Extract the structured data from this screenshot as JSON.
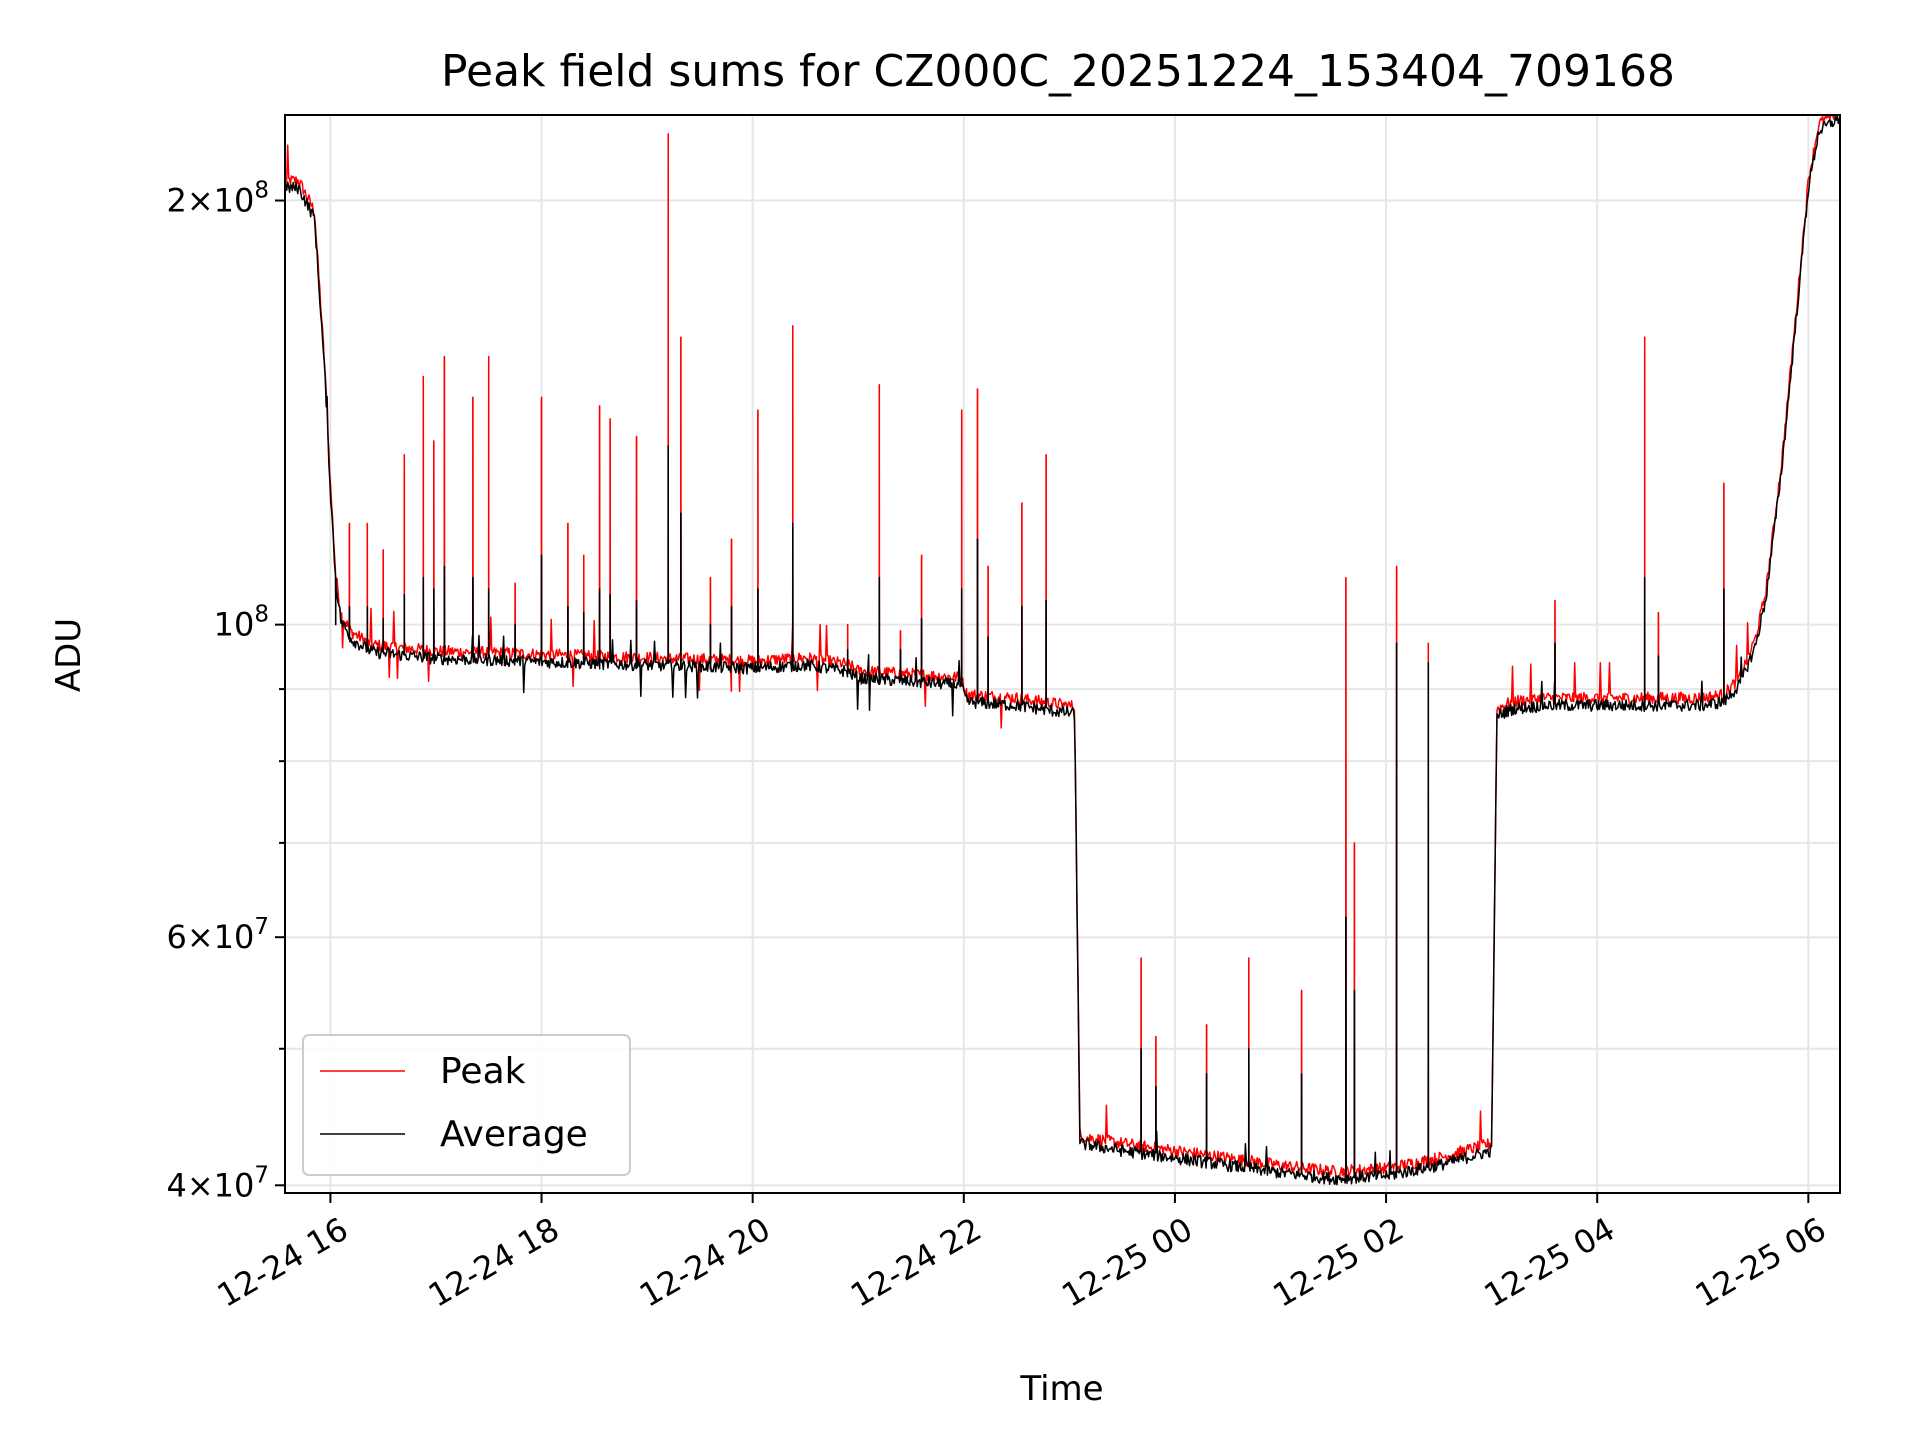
{
  "chart_data": {
    "type": "line",
    "title": "Peak field sums for CZ000C_20251224_153404_709168",
    "xlabel": "Time",
    "ylabel": "ADU",
    "yscale": "log",
    "ylim": [
      39500000,
      230000000
    ],
    "xlim": [
      15.57,
      30.3
    ],
    "grid": true,
    "legend_location": "lower-left",
    "x_units": "hours since 2025-12-24 00:00",
    "x_ticks": [
      {
        "value": 16,
        "label": "12-24 16"
      },
      {
        "value": 18,
        "label": "12-24 18"
      },
      {
        "value": 20,
        "label": "12-24 20"
      },
      {
        "value": 22,
        "label": "12-24 22"
      },
      {
        "value": 24,
        "label": "12-25 00"
      },
      {
        "value": 26,
        "label": "12-25 02"
      },
      {
        "value": 28,
        "label": "12-25 04"
      },
      {
        "value": 30,
        "label": "12-25 06"
      }
    ],
    "y_major_ticks": [
      {
        "value": 40000000,
        "mantissa": "4",
        "exp": "7"
      },
      {
        "value": 60000000,
        "mantissa": "6",
        "exp": "7"
      },
      {
        "value": 100000000,
        "mantissa": "",
        "exp": "8"
      },
      {
        "value": 200000000,
        "mantissa": "2",
        "exp": "8"
      }
    ],
    "y_minor_ticks": [
      50000000,
      70000000,
      80000000,
      90000000
    ],
    "baseline": [
      [
        15.57,
        205000000
      ],
      [
        15.7,
        205000000
      ],
      [
        15.85,
        195000000
      ],
      [
        15.95,
        150000000
      ],
      [
        16.0,
        125000000
      ],
      [
        16.05,
        108000000
      ],
      [
        16.1,
        101000000
      ],
      [
        16.2,
        98000000
      ],
      [
        16.4,
        96000000
      ],
      [
        17.0,
        95000000
      ],
      [
        17.5,
        94800000
      ],
      [
        18.0,
        94500000
      ],
      [
        19.0,
        94000000
      ],
      [
        20.0,
        93500000
      ],
      [
        20.5,
        94000000
      ],
      [
        20.9,
        93000000
      ],
      [
        21.0,
        92000000
      ],
      [
        21.5,
        91500000
      ],
      [
        21.97,
        91000000
      ],
      [
        22.03,
        88500000
      ],
      [
        22.5,
        88000000
      ],
      [
        22.95,
        87000000
      ],
      [
        23.05,
        86800000
      ],
      [
        23.1,
        43000000
      ],
      [
        23.5,
        42500000
      ],
      [
        24.0,
        42000000
      ],
      [
        24.5,
        41500000
      ],
      [
        25.0,
        41000000
      ],
      [
        25.5,
        40600000
      ],
      [
        26.0,
        40800000
      ],
      [
        26.5,
        41500000
      ],
      [
        27.0,
        42500000
      ],
      [
        27.05,
        86500000
      ],
      [
        27.2,
        87500000
      ],
      [
        27.5,
        88000000
      ],
      [
        28.0,
        88000000
      ],
      [
        28.5,
        88000000
      ],
      [
        29.0,
        88000000
      ],
      [
        29.2,
        88500000
      ],
      [
        29.35,
        91000000
      ],
      [
        29.5,
        97000000
      ],
      [
        29.6,
        105000000
      ],
      [
        29.75,
        130000000
      ],
      [
        29.9,
        170000000
      ],
      [
        30.0,
        205000000
      ],
      [
        30.1,
        225000000
      ],
      [
        30.3,
        230000000
      ]
    ],
    "series": [
      {
        "name": "Peak",
        "color": "#ff0000",
        "spikes": [
          [
            16.05,
            105000000
          ],
          [
            16.18,
            118000000
          ],
          [
            16.35,
            118000000
          ],
          [
            16.5,
            113000000
          ],
          [
            16.7,
            132000000
          ],
          [
            16.88,
            150000000
          ],
          [
            16.98,
            135000000
          ],
          [
            17.08,
            155000000
          ],
          [
            17.35,
            145000000
          ],
          [
            17.5,
            155000000
          ],
          [
            17.75,
            107000000
          ],
          [
            18.0,
            145000000
          ],
          [
            18.25,
            118000000
          ],
          [
            18.4,
            112000000
          ],
          [
            18.55,
            143000000
          ],
          [
            18.65,
            140000000
          ],
          [
            18.9,
            136000000
          ],
          [
            19.2,
            223000000
          ],
          [
            19.32,
            160000000
          ],
          [
            19.6,
            108000000
          ],
          [
            19.8,
            115000000
          ],
          [
            20.05,
            142000000
          ],
          [
            20.38,
            163000000
          ],
          [
            20.9,
            100000000
          ],
          [
            21.2,
            148000000
          ],
          [
            21.4,
            99000000
          ],
          [
            21.6,
            112000000
          ],
          [
            21.98,
            142000000
          ],
          [
            22.13,
            147000000
          ],
          [
            22.23,
            110000000
          ],
          [
            22.55,
            122000000
          ],
          [
            22.78,
            132000000
          ],
          [
            23.68,
            58000000
          ],
          [
            23.82,
            51000000
          ],
          [
            24.3,
            52000000
          ],
          [
            24.7,
            58000000
          ],
          [
            25.2,
            55000000
          ],
          [
            25.62,
            108000000
          ],
          [
            25.7,
            70000000
          ],
          [
            26.1,
            110000000
          ],
          [
            26.4,
            97000000
          ],
          [
            27.6,
            104000000
          ],
          [
            28.45,
            160000000
          ],
          [
            28.58,
            102000000
          ],
          [
            29.2,
            126000000
          ]
        ]
      },
      {
        "name": "Average",
        "color": "#000000",
        "spikes": [
          [
            16.05,
            100000000
          ],
          [
            16.18,
            103000000
          ],
          [
            16.35,
            103000000
          ],
          [
            16.5,
            101000000
          ],
          [
            16.7,
            105000000
          ],
          [
            16.88,
            108000000
          ],
          [
            16.98,
            106000000
          ],
          [
            17.08,
            110000000
          ],
          [
            17.35,
            108000000
          ],
          [
            17.5,
            106000000
          ],
          [
            17.75,
            100000000
          ],
          [
            18.0,
            112000000
          ],
          [
            18.25,
            103000000
          ],
          [
            18.4,
            102000000
          ],
          [
            18.55,
            106000000
          ],
          [
            18.65,
            105000000
          ],
          [
            18.9,
            104000000
          ],
          [
            19.2,
            134000000
          ],
          [
            19.32,
            120000000
          ],
          [
            19.6,
            100000000
          ],
          [
            19.8,
            103000000
          ],
          [
            20.05,
            106000000
          ],
          [
            20.38,
            118000000
          ],
          [
            20.9,
            96000000
          ],
          [
            21.2,
            108000000
          ],
          [
            21.4,
            96000000
          ],
          [
            21.6,
            101000000
          ],
          [
            21.98,
            106000000
          ],
          [
            22.13,
            115000000
          ],
          [
            22.23,
            98000000
          ],
          [
            22.55,
            103000000
          ],
          [
            22.78,
            104000000
          ],
          [
            23.68,
            50000000
          ],
          [
            23.82,
            47000000
          ],
          [
            24.3,
            48000000
          ],
          [
            24.7,
            50000000
          ],
          [
            25.2,
            48000000
          ],
          [
            25.62,
            62000000
          ],
          [
            25.7,
            55000000
          ],
          [
            26.1,
            97000000
          ],
          [
            26.4,
            94000000
          ],
          [
            27.6,
            97000000
          ],
          [
            28.45,
            108000000
          ],
          [
            28.58,
            95000000
          ],
          [
            29.2,
            106000000
          ]
        ]
      }
    ]
  }
}
